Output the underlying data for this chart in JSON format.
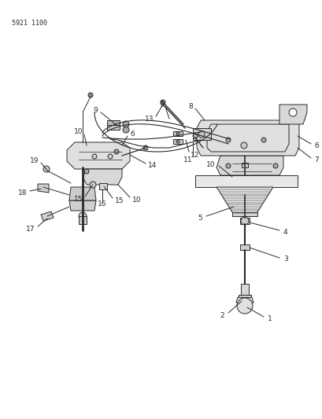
{
  "part_number": "5921 1100",
  "background_color": "#ffffff",
  "line_color": "#2a2a2a",
  "text_color": "#2a2a2a",
  "figsize": [
    4.1,
    5.33
  ],
  "dpi": 100,
  "label_fs": 6.5
}
